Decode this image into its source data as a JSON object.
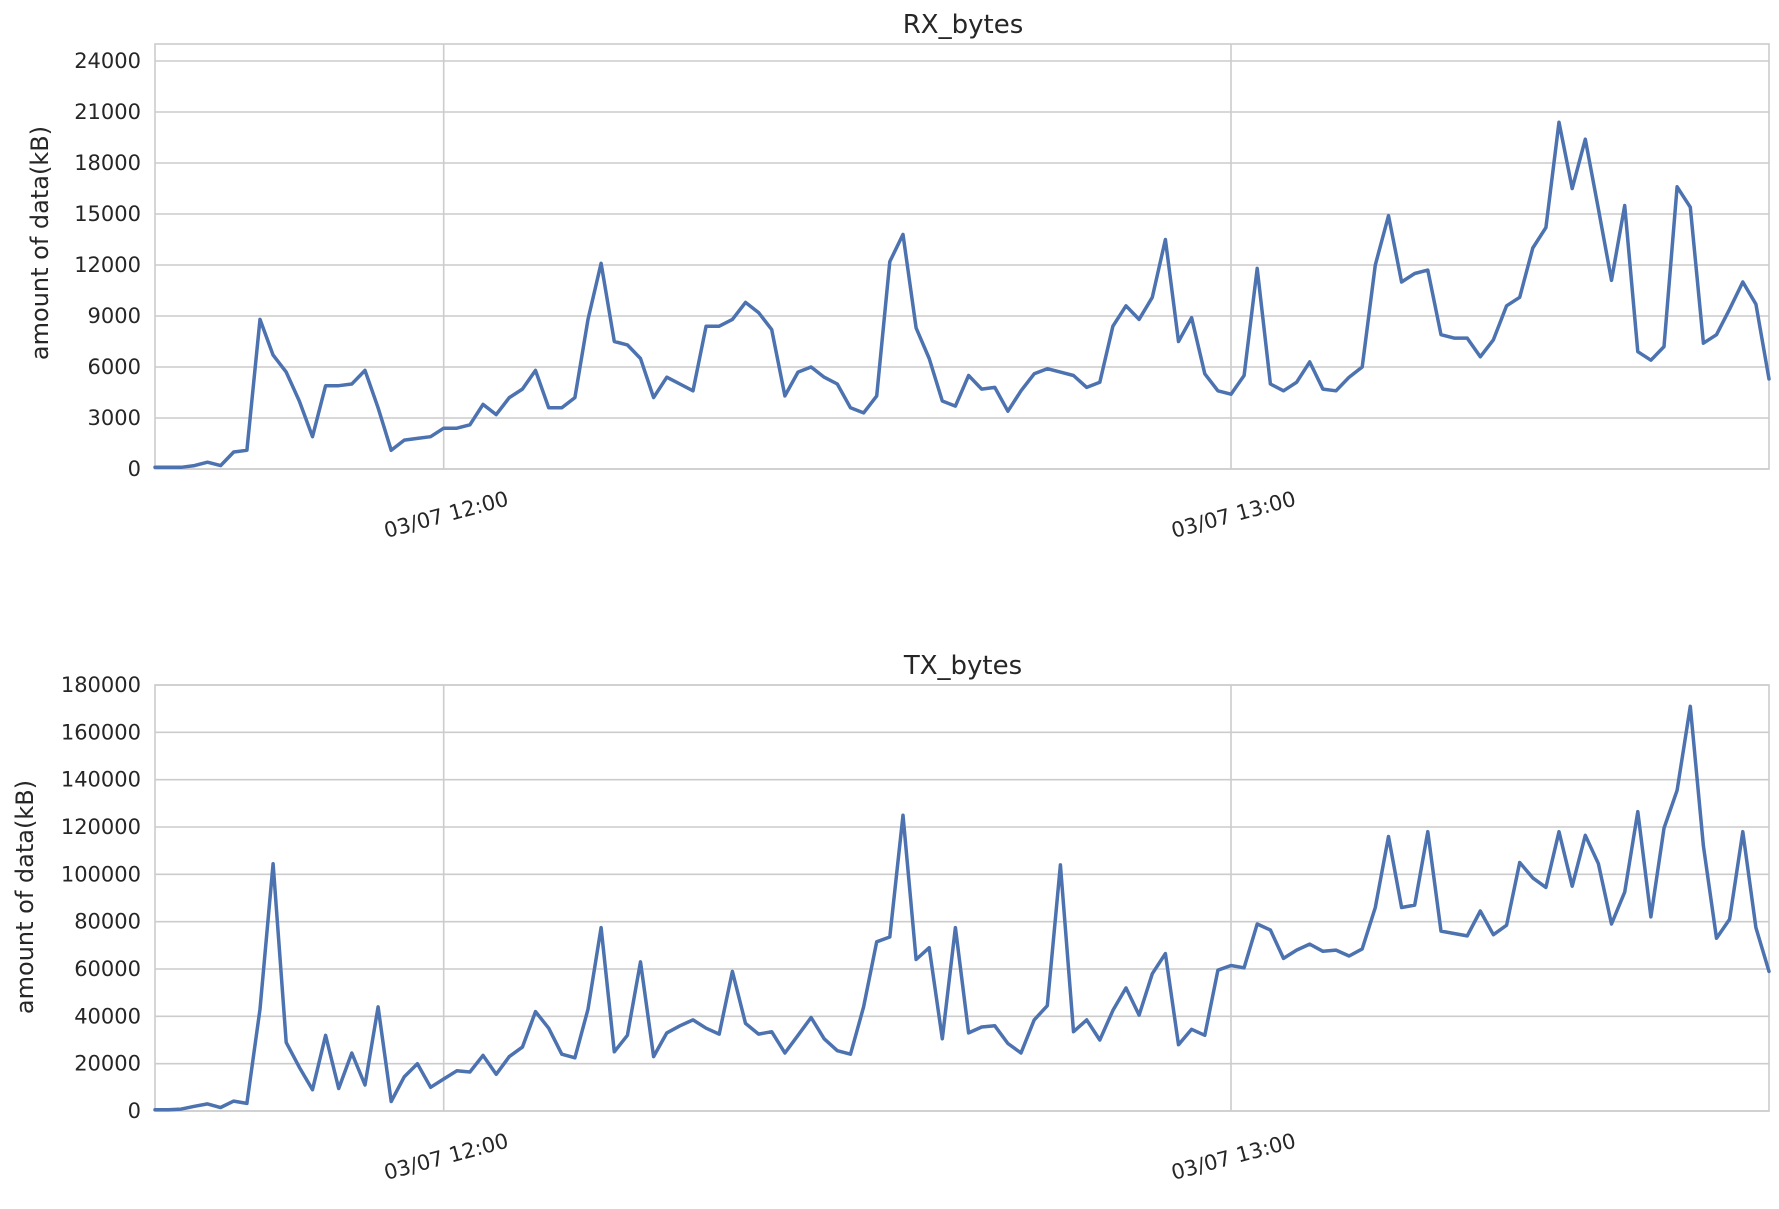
{
  "chart_data": [
    {
      "type": "line",
      "title": "RX_bytes",
      "ylabel": "amount of data(kB)",
      "xlabel": "",
      "x_range": [
        "11:38:00",
        "13:41:00"
      ],
      "x_tick_times": [
        "12:00:00",
        "13:00:00"
      ],
      "x_ticks": [
        "03/07 12:00",
        "03/07 13:00"
      ],
      "ylim": [
        0,
        25000
      ],
      "y_ticks": [
        0,
        3000,
        6000,
        9000,
        12000,
        15000,
        18000,
        21000,
        24000
      ],
      "grid": true,
      "legend": "none",
      "color": "#4c72b0",
      "series": [
        {
          "x": [
            "11:38:00",
            "11:39:00",
            "11:40:00",
            "11:41:00",
            "11:42:00",
            "11:43:00",
            "11:44:00",
            "11:45:00",
            "11:46:00",
            "11:47:00",
            "11:48:00",
            "11:49:00",
            "11:50:00",
            "11:51:00",
            "11:52:00",
            "11:53:00",
            "11:54:00",
            "11:55:00",
            "11:56:00",
            "11:57:00",
            "11:58:00",
            "11:59:00",
            "12:00:00",
            "12:01:00",
            "12:02:00",
            "12:03:00",
            "12:04:00",
            "12:05:00",
            "12:06:00",
            "12:07:00",
            "12:08:00",
            "12:09:00",
            "12:10:00",
            "12:11:00",
            "12:12:00",
            "12:13:00",
            "12:14:00",
            "12:15:00",
            "12:16:00",
            "12:17:00",
            "12:18:00",
            "12:19:00",
            "12:20:00",
            "12:21:00",
            "12:22:00",
            "12:23:00",
            "12:24:00",
            "12:25:00",
            "12:26:00",
            "12:27:00",
            "12:28:00",
            "12:29:00",
            "12:30:00",
            "12:31:00",
            "12:32:00",
            "12:33:00",
            "12:34:00",
            "12:35:00",
            "12:36:00",
            "12:37:00",
            "12:38:00",
            "12:39:00",
            "12:40:00",
            "12:41:00",
            "12:42:00",
            "12:43:00",
            "12:44:00",
            "12:45:00",
            "12:46:00",
            "12:47:00",
            "12:48:00",
            "12:49:00",
            "12:50:00",
            "12:51:00",
            "12:52:00",
            "12:53:00",
            "12:54:00",
            "12:55:00",
            "12:56:00",
            "12:57:00",
            "12:58:00",
            "12:59:00",
            "13:00:00",
            "13:01:00",
            "13:02:00",
            "13:03:00",
            "13:04:00",
            "13:05:00",
            "13:06:00",
            "13:07:00",
            "13:08:00",
            "13:09:00",
            "13:10:00",
            "13:11:00",
            "13:12:00",
            "13:13:00",
            "13:14:00",
            "13:15:00",
            "13:16:00",
            "13:17:00",
            "13:18:00",
            "13:19:00",
            "13:20:00",
            "13:21:00",
            "13:22:00",
            "13:23:00",
            "13:24:00",
            "13:25:00",
            "13:26:00",
            "13:27:00",
            "13:28:00",
            "13:29:00",
            "13:30:00",
            "13:31:00",
            "13:32:00",
            "13:33:00",
            "13:34:00",
            "13:35:00",
            "13:36:00",
            "13:37:00",
            "13:38:00",
            "13:39:00",
            "13:40:00",
            "13:41:00"
          ],
          "values": [
            100,
            100,
            100,
            200,
            400,
            200,
            1000,
            1100,
            8800,
            6700,
            5700,
            4000,
            1900,
            4900,
            4900,
            5000,
            5800,
            3600,
            1100,
            1700,
            1800,
            1900,
            2400,
            2400,
            2600,
            3800,
            3200,
            4200,
            4700,
            5800,
            3600,
            3600,
            4200,
            8800,
            12100,
            7500,
            7300,
            6500,
            4200,
            5400,
            5000,
            4600,
            8400,
            8400,
            8800,
            9800,
            9200,
            8200,
            4300,
            5700,
            6000,
            5400,
            5000,
            3600,
            3300,
            4300,
            12200,
            13800,
            8300,
            6500,
            4000,
            3700,
            5500,
            4700,
            4800,
            3400,
            4600,
            5600,
            5900,
            5700,
            5500,
            4800,
            5100,
            8400,
            9600,
            8800,
            10100,
            13500,
            7500,
            8900,
            5600,
            4600,
            4400,
            5500,
            11800,
            5000,
            4600,
            5100,
            6300,
            4700,
            4600,
            5400,
            6000,
            12000,
            14900,
            11000,
            11500,
            11700,
            7900,
            7700,
            7700,
            6600,
            7600,
            9600,
            10100,
            13000,
            14200,
            20400,
            16500,
            19400,
            15300,
            11100,
            15500,
            6900,
            6400,
            7200,
            16600,
            15400,
            7400,
            7900,
            9400,
            11000,
            9700,
            5300
          ]
        }
      ]
    },
    {
      "type": "line",
      "title": "TX_bytes",
      "ylabel": "amount of data(kB)",
      "xlabel": "",
      "x_range": [
        "11:38:00",
        "13:41:00"
      ],
      "x_tick_times": [
        "12:00:00",
        "13:00:00"
      ],
      "x_ticks": [
        "03/07 12:00",
        "03/07 13:00"
      ],
      "ylim": [
        0,
        180000
      ],
      "y_ticks": [
        0,
        20000,
        40000,
        60000,
        80000,
        100000,
        120000,
        140000,
        160000,
        180000
      ],
      "grid": true,
      "legend": "none",
      "color": "#4c72b0",
      "series": [
        {
          "x": [
            "11:38:00",
            "11:39:00",
            "11:40:00",
            "11:41:00",
            "11:42:00",
            "11:43:00",
            "11:44:00",
            "11:45:00",
            "11:46:00",
            "11:47:00",
            "11:48:00",
            "11:49:00",
            "11:50:00",
            "11:51:00",
            "11:52:00",
            "11:53:00",
            "11:54:00",
            "11:55:00",
            "11:56:00",
            "11:57:00",
            "11:58:00",
            "11:59:00",
            "12:00:00",
            "12:01:00",
            "12:02:00",
            "12:03:00",
            "12:04:00",
            "12:05:00",
            "12:06:00",
            "12:07:00",
            "12:08:00",
            "12:09:00",
            "12:10:00",
            "12:11:00",
            "12:12:00",
            "12:13:00",
            "12:14:00",
            "12:15:00",
            "12:16:00",
            "12:17:00",
            "12:18:00",
            "12:19:00",
            "12:20:00",
            "12:21:00",
            "12:22:00",
            "12:23:00",
            "12:24:00",
            "12:25:00",
            "12:26:00",
            "12:27:00",
            "12:28:00",
            "12:29:00",
            "12:30:00",
            "12:31:00",
            "12:32:00",
            "12:33:00",
            "12:34:00",
            "12:35:00",
            "12:36:00",
            "12:37:00",
            "12:38:00",
            "12:39:00",
            "12:40:00",
            "12:41:00",
            "12:42:00",
            "12:43:00",
            "12:44:00",
            "12:45:00",
            "12:46:00",
            "12:47:00",
            "12:48:00",
            "12:49:00",
            "12:50:00",
            "12:51:00",
            "12:52:00",
            "12:53:00",
            "12:54:00",
            "12:55:00",
            "12:56:00",
            "12:57:00",
            "12:58:00",
            "12:59:00",
            "13:00:00",
            "13:01:00",
            "13:02:00",
            "13:03:00",
            "13:04:00",
            "13:05:00",
            "13:06:00",
            "13:07:00",
            "13:08:00",
            "13:09:00",
            "13:10:00",
            "13:11:00",
            "13:12:00",
            "13:13:00",
            "13:14:00",
            "13:15:00",
            "13:16:00",
            "13:17:00",
            "13:18:00",
            "13:19:00",
            "13:20:00",
            "13:21:00",
            "13:22:00",
            "13:23:00",
            "13:24:00",
            "13:25:00",
            "13:26:00",
            "13:27:00",
            "13:28:00",
            "13:29:00",
            "13:30:00",
            "13:31:00",
            "13:32:00",
            "13:33:00",
            "13:34:00",
            "13:35:00",
            "13:36:00",
            "13:37:00",
            "13:38:00",
            "13:39:00",
            "13:40:00",
            "13:41:00"
          ],
          "values": [
            500,
            500,
            800,
            2000,
            3000,
            1500,
            4200,
            3200,
            43000,
            104500,
            29000,
            18500,
            9000,
            32000,
            9500,
            24500,
            11000,
            44000,
            4000,
            14500,
            20000,
            10000,
            13500,
            17000,
            16500,
            23500,
            15500,
            23000,
            27000,
            42000,
            35000,
            24000,
            22500,
            43000,
            77500,
            25000,
            32000,
            63000,
            23000,
            33000,
            36000,
            38500,
            35000,
            32500,
            59000,
            37000,
            32500,
            33500,
            24500,
            32000,
            39500,
            30500,
            25500,
            24000,
            44000,
            71500,
            73500,
            125000,
            64000,
            69000,
            30500,
            77500,
            33000,
            35500,
            36000,
            28500,
            24500,
            38500,
            44500,
            104000,
            33500,
            38500,
            30000,
            42500,
            52000,
            40500,
            58000,
            66500,
            28000,
            34500,
            32000,
            59500,
            61500,
            60500,
            79000,
            76500,
            64500,
            68000,
            70500,
            67500,
            68000,
            65500,
            68500,
            86000,
            116000,
            86000,
            87000,
            118000,
            76000,
            75000,
            74000,
            84500,
            74500,
            78500,
            105000,
            98500,
            94500,
            118000,
            95000,
            116500,
            104500,
            79000,
            92500,
            126500,
            82000,
            119500,
            135500,
            171000,
            112000,
            73000,
            81000,
            118000,
            77500,
            59000
          ]
        }
      ]
    }
  ]
}
